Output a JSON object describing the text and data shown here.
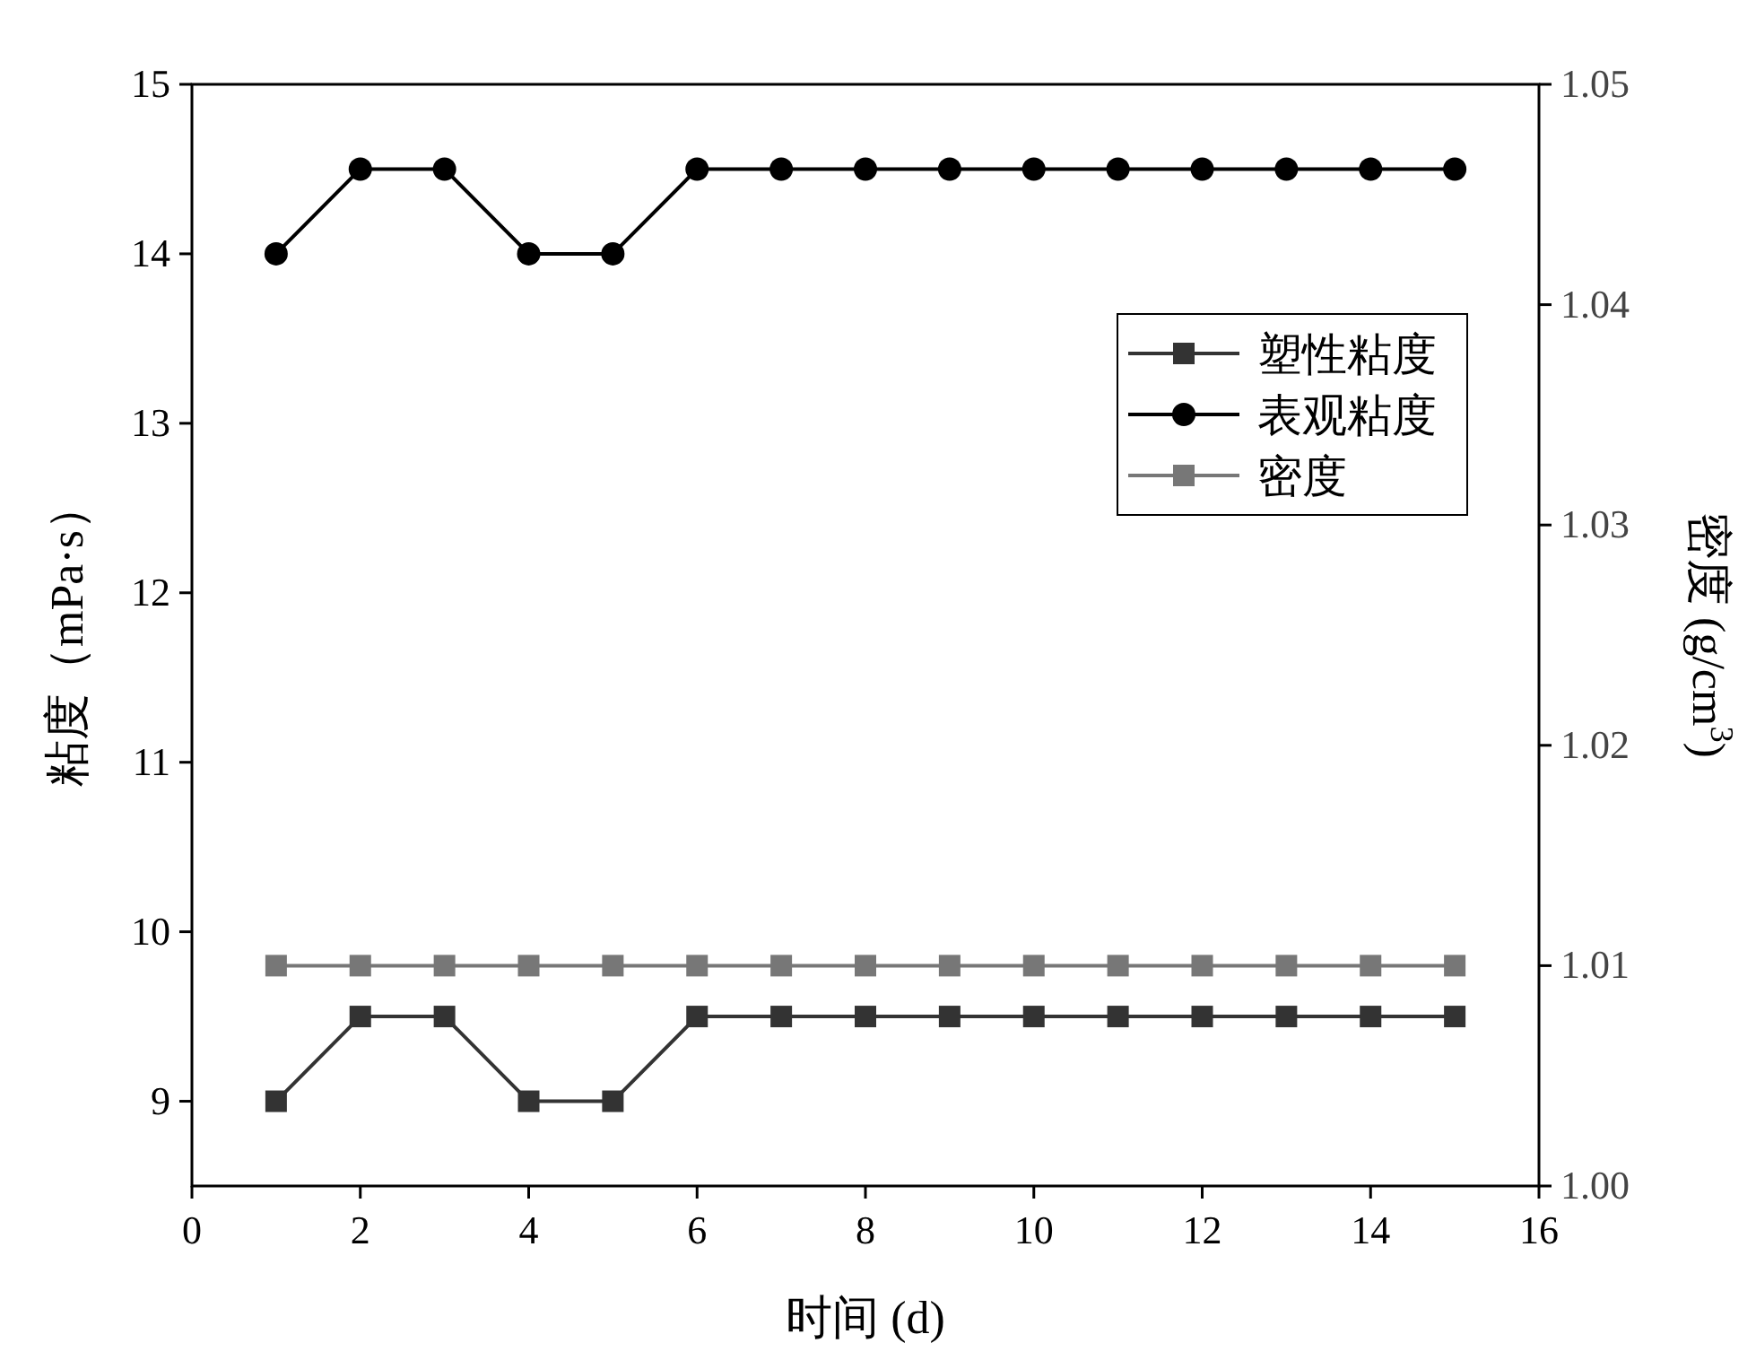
{
  "chart_data": {
    "type": "line",
    "xlabel": "时间 (d)",
    "ylabel": "粘度（mPa·s）",
    "y2label": "密度 (g/cm$^{3}$)",
    "x": [
      1,
      2,
      3,
      4,
      5,
      6,
      7,
      8,
      9,
      10,
      11,
      12,
      13,
      14,
      15
    ],
    "series": [
      {
        "name": "塑性粘度",
        "color": "#333333",
        "marker": "square",
        "values": [
          9,
          9.5,
          9.5,
          9,
          9,
          9.5,
          9.5,
          9.5,
          9.5,
          9.5,
          9.5,
          9.5,
          9.5,
          9.5,
          9.5
        ]
      },
      {
        "name": "表观粘度",
        "color": "#000000",
        "marker": "circle",
        "values": [
          14,
          14.5,
          14.5,
          14,
          14,
          14.5,
          14.5,
          14.5,
          14.5,
          14.5,
          14.5,
          14.5,
          14.5,
          14.5,
          14.5
        ]
      },
      {
        "name": "密度",
        "color": "#777777",
        "marker": "square",
        "axis": "y2",
        "values": [
          1.01,
          1.01,
          1.01,
          1.01,
          1.01,
          1.01,
          1.01,
          1.01,
          1.01,
          1.01,
          1.01,
          1.01,
          1.01,
          1.01,
          1.01
        ]
      }
    ],
    "xlim": [
      0,
      16
    ],
    "xticks": [
      0,
      2,
      4,
      6,
      8,
      10,
      12,
      14,
      16
    ],
    "ylim": [
      8.5,
      15
    ],
    "yticks": [
      9,
      10,
      11,
      12,
      13,
      14,
      15
    ],
    "y2lim": [
      1.0,
      1.05
    ],
    "y2ticks": [
      {
        "value": 1.0,
        "label": "1.00"
      },
      {
        "value": 1.01,
        "label": "1.01"
      },
      {
        "value": 1.02,
        "label": "1.02"
      },
      {
        "value": 1.03,
        "label": "1.03"
      },
      {
        "value": 1.04,
        "label": "1.04"
      },
      {
        "value": 1.05,
        "label": "1.05"
      }
    ],
    "legend": "top right",
    "grid": false
  }
}
